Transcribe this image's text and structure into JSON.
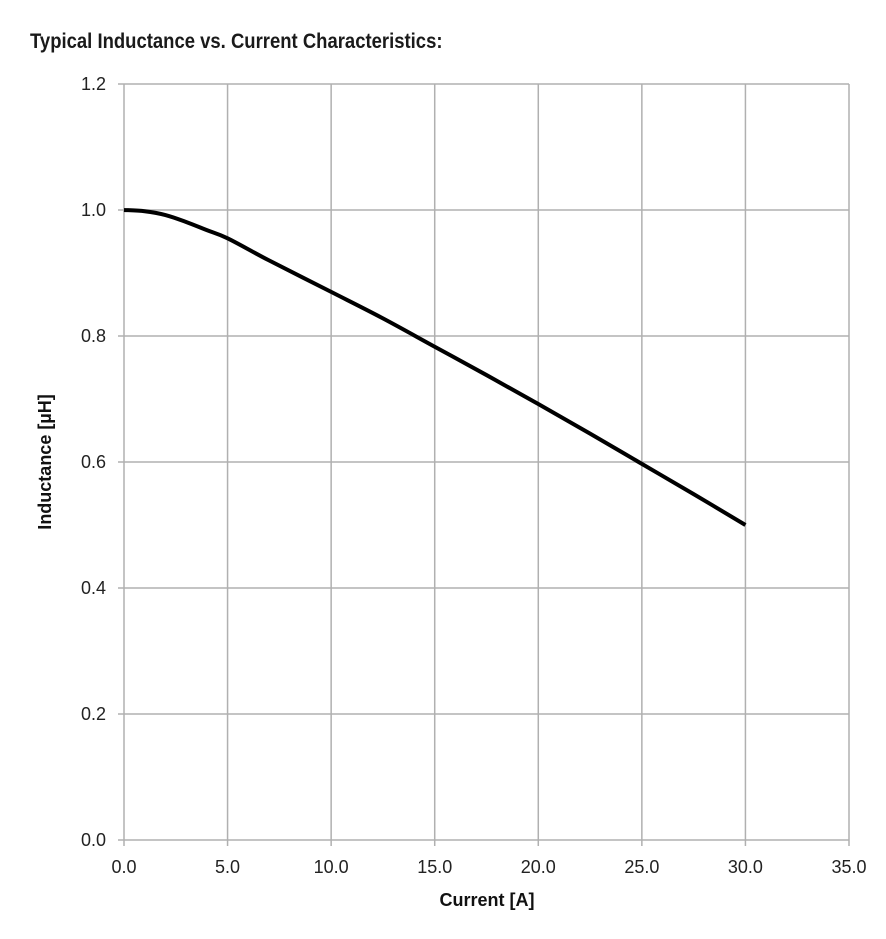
{
  "chart_data": {
    "type": "line",
    "title": "Typical Inductance vs. Current Characteristics:",
    "xlabel": "Current [A]",
    "ylabel": "Inductance [µH]",
    "xlim": [
      0,
      35
    ],
    "ylim": [
      0,
      1.2
    ],
    "xticks": [
      "0.0",
      "5.0",
      "10.0",
      "15.0",
      "20.0",
      "25.0",
      "30.0",
      "35.0"
    ],
    "yticks": [
      "0.0",
      "0.2",
      "0.4",
      "0.6",
      "0.8",
      "1.0",
      "1.2"
    ],
    "grid": true,
    "series": [
      {
        "name": "Inductance",
        "color": "#000000",
        "x": [
          0,
          1,
          2,
          3,
          4,
          5,
          7,
          10,
          12.5,
          15,
          17.5,
          20,
          22.5,
          25,
          27.5,
          30
        ],
        "y": [
          1.0,
          0.998,
          0.992,
          0.981,
          0.968,
          0.955,
          0.92,
          0.87,
          0.828,
          0.783,
          0.738,
          0.692,
          0.645,
          0.597,
          0.549,
          0.5
        ]
      }
    ]
  },
  "colors": {
    "grid": "#b0b0b0",
    "line": "#000000"
  }
}
